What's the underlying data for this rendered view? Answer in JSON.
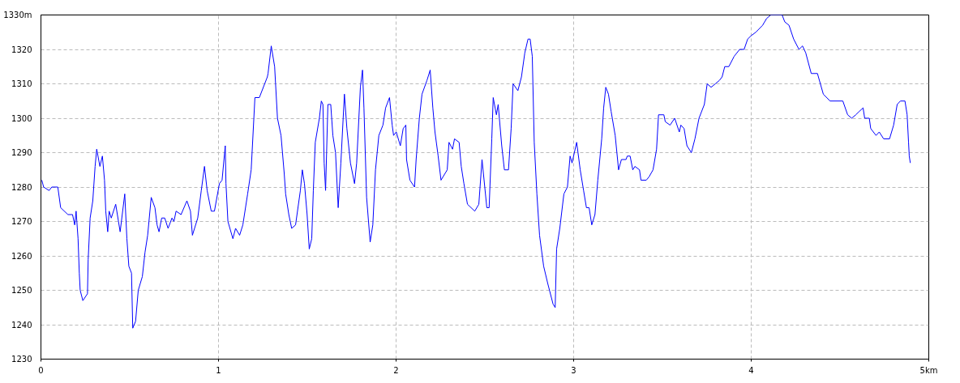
{
  "chart_data": {
    "type": "line",
    "x": [
      0.005,
      0.015,
      0.046,
      0.061,
      0.095,
      0.111,
      0.152,
      0.178,
      0.19,
      0.198,
      0.209,
      0.216,
      0.221,
      0.236,
      0.262,
      0.266,
      0.277,
      0.292,
      0.305,
      0.314,
      0.332,
      0.346,
      0.358,
      0.365,
      0.376,
      0.384,
      0.396,
      0.421,
      0.446,
      0.472,
      0.484,
      0.495,
      0.51,
      0.517,
      0.533,
      0.548,
      0.571,
      0.586,
      0.601,
      0.621,
      0.642,
      0.654,
      0.665,
      0.68,
      0.697,
      0.716,
      0.738,
      0.749,
      0.761,
      0.789,
      0.822,
      0.842,
      0.853,
      0.883,
      0.903,
      0.921,
      0.936,
      0.959,
      0.977,
      1.005,
      1.02,
      1.038,
      1.042,
      1.053,
      1.081,
      1.096,
      1.119,
      1.137,
      1.164,
      1.184,
      1.195,
      1.205,
      1.23,
      1.275,
      1.279,
      1.297,
      1.316,
      1.332,
      1.352,
      1.37,
      1.378,
      1.396,
      1.412,
      1.434,
      1.461,
      1.472,
      1.484,
      1.499,
      1.511,
      1.525,
      1.534,
      1.545,
      1.568,
      1.579,
      1.588,
      1.595,
      1.603,
      1.616,
      1.632,
      1.644,
      1.659,
      1.674,
      1.689,
      1.709,
      1.723,
      1.743,
      1.766,
      1.778,
      1.799,
      1.811,
      1.819,
      1.834,
      1.854,
      1.869,
      1.884,
      1.903,
      1.926,
      1.941,
      1.963,
      1.978,
      1.986,
      2.001,
      2.024,
      2.04,
      2.055,
      2.059,
      2.078,
      2.104,
      2.113,
      2.131,
      2.146,
      2.174,
      2.192,
      2.207,
      2.219,
      2.237,
      2.253,
      2.288,
      2.298,
      2.318,
      2.329,
      2.355,
      2.367,
      2.382,
      2.402,
      2.443,
      2.466,
      2.484,
      2.511,
      2.524,
      2.539,
      2.547,
      2.565,
      2.575,
      2.595,
      2.61,
      2.633,
      2.648,
      2.659,
      2.686,
      2.706,
      2.725,
      2.743,
      2.755,
      2.767,
      2.778,
      2.793,
      2.808,
      2.831,
      2.854,
      2.884,
      2.896,
      2.904,
      2.922,
      2.945,
      2.965,
      2.98,
      2.991,
      3.017,
      3.037,
      3.056,
      3.072,
      3.087,
      3.102,
      3.12,
      3.136,
      3.158,
      3.169,
      3.181,
      3.196,
      3.211,
      3.234,
      3.253,
      3.269,
      3.295,
      3.302,
      3.318,
      3.333,
      3.345,
      3.371,
      3.379,
      3.409,
      3.425,
      3.447,
      3.467,
      3.478,
      3.508,
      3.516,
      3.543,
      3.569,
      3.595,
      3.604,
      3.622,
      3.638,
      3.663,
      3.683,
      3.706,
      3.736,
      3.752,
      3.774,
      3.798,
      3.821,
      3.836,
      3.851,
      3.874,
      3.904,
      3.935,
      3.96,
      3.98,
      4.0,
      4.026,
      4.064,
      4.087,
      4.11,
      4.174,
      4.189,
      4.213,
      4.239,
      4.269,
      4.289,
      4.307,
      4.338,
      4.373,
      4.406,
      4.444,
      4.516,
      4.543,
      4.566,
      4.589,
      4.609,
      4.63,
      4.639,
      4.665,
      4.673,
      4.703,
      4.721,
      4.746,
      4.779,
      4.802,
      4.822,
      4.84,
      4.866,
      4.878,
      4.886,
      4.89,
      4.896
    ],
    "series": [
      {
        "color": "#0000ff",
        "values": [
          1282,
          1280,
          1279,
          1280,
          1280,
          1274,
          1272,
          1272,
          1269,
          1273,
          1265,
          1255,
          1250,
          1247,
          1249,
          1259,
          1271,
          1276,
          1286,
          1291,
          1286,
          1289,
          1282,
          1273,
          1267,
          1273,
          1271,
          1275,
          1267,
          1278,
          1265,
          1257,
          1255,
          1239,
          1241,
          1250,
          1254,
          1261,
          1266,
          1277,
          1274,
          1269,
          1267,
          1271,
          1271,
          1268,
          1271,
          1270,
          1273,
          1272,
          1276,
          1273,
          1266,
          1271,
          1279,
          1286,
          1279,
          1273,
          1273,
          1281,
          1282,
          1292,
          1281,
          1270,
          1265,
          1268,
          1266,
          1269,
          1278,
          1285,
          1296,
          1306,
          1306,
          1312,
          1313,
          1321,
          1315,
          1300,
          1295,
          1284,
          1278,
          1272,
          1268,
          1269,
          1279,
          1285,
          1281,
          1272,
          1262,
          1265,
          1279,
          1293,
          1300,
          1305,
          1304,
          1287,
          1279,
          1304,
          1304,
          1295,
          1290,
          1274,
          1287,
          1307,
          1297,
          1287,
          1281,
          1287,
          1309,
          1314,
          1303,
          1277,
          1264,
          1269,
          1285,
          1295,
          1298,
          1303,
          1306,
          1298,
          1295,
          1296,
          1292,
          1297,
          1298,
          1288,
          1282,
          1280,
          1288,
          1300,
          1307,
          1311,
          1314,
          1303,
          1296,
          1289,
          1282,
          1285,
          1293,
          1291,
          1294,
          1293,
          1286,
          1281,
          1275,
          1273,
          1275,
          1288,
          1274,
          1274,
          1294,
          1306,
          1301,
          1304,
          1292,
          1285,
          1285,
          1297,
          1310,
          1308,
          1312,
          1319,
          1323,
          1323,
          1318,
          1293,
          1278,
          1266,
          1257,
          1252,
          1246,
          1245,
          1262,
          1268,
          1278,
          1280,
          1289,
          1287,
          1293,
          1285,
          1279,
          1274,
          1274,
          1269,
          1272,
          1282,
          1294,
          1303,
          1309,
          1307,
          1302,
          1295,
          1285,
          1288,
          1288,
          1289,
          1289,
          1285,
          1286,
          1285,
          1282,
          1282,
          1283,
          1285,
          1291,
          1301,
          1301,
          1299,
          1298,
          1300,
          1296,
          1298,
          1297,
          1292,
          1290,
          1294,
          1300,
          1304,
          1310,
          1309,
          1310,
          1311,
          1312,
          1315,
          1315,
          1318,
          1320,
          1320,
          1323,
          1324,
          1325,
          1327,
          1329,
          1330,
          1330,
          1328,
          1327,
          1323,
          1320,
          1321,
          1319,
          1313,
          1313,
          1307,
          1305,
          1305,
          1301,
          1300,
          1301,
          1302,
          1303,
          1300,
          1300,
          1297,
          1295,
          1296,
          1294,
          1294,
          1298,
          1304,
          1305,
          1305,
          1301,
          1293,
          1289,
          1287
        ]
      }
    ],
    "xlim": [
      0,
      5
    ],
    "ylim": [
      1230,
      1330
    ],
    "xticks": [
      0,
      1,
      2,
      3,
      4,
      {
        "value": 5,
        "label": "5km"
      }
    ],
    "yticks": [
      1230,
      1240,
      1250,
      1260,
      1270,
      1280,
      1290,
      1300,
      1310,
      1320,
      {
        "value": 1330,
        "label": "1330m"
      }
    ],
    "grid": true,
    "line_style": "solid",
    "marker": "none"
  }
}
